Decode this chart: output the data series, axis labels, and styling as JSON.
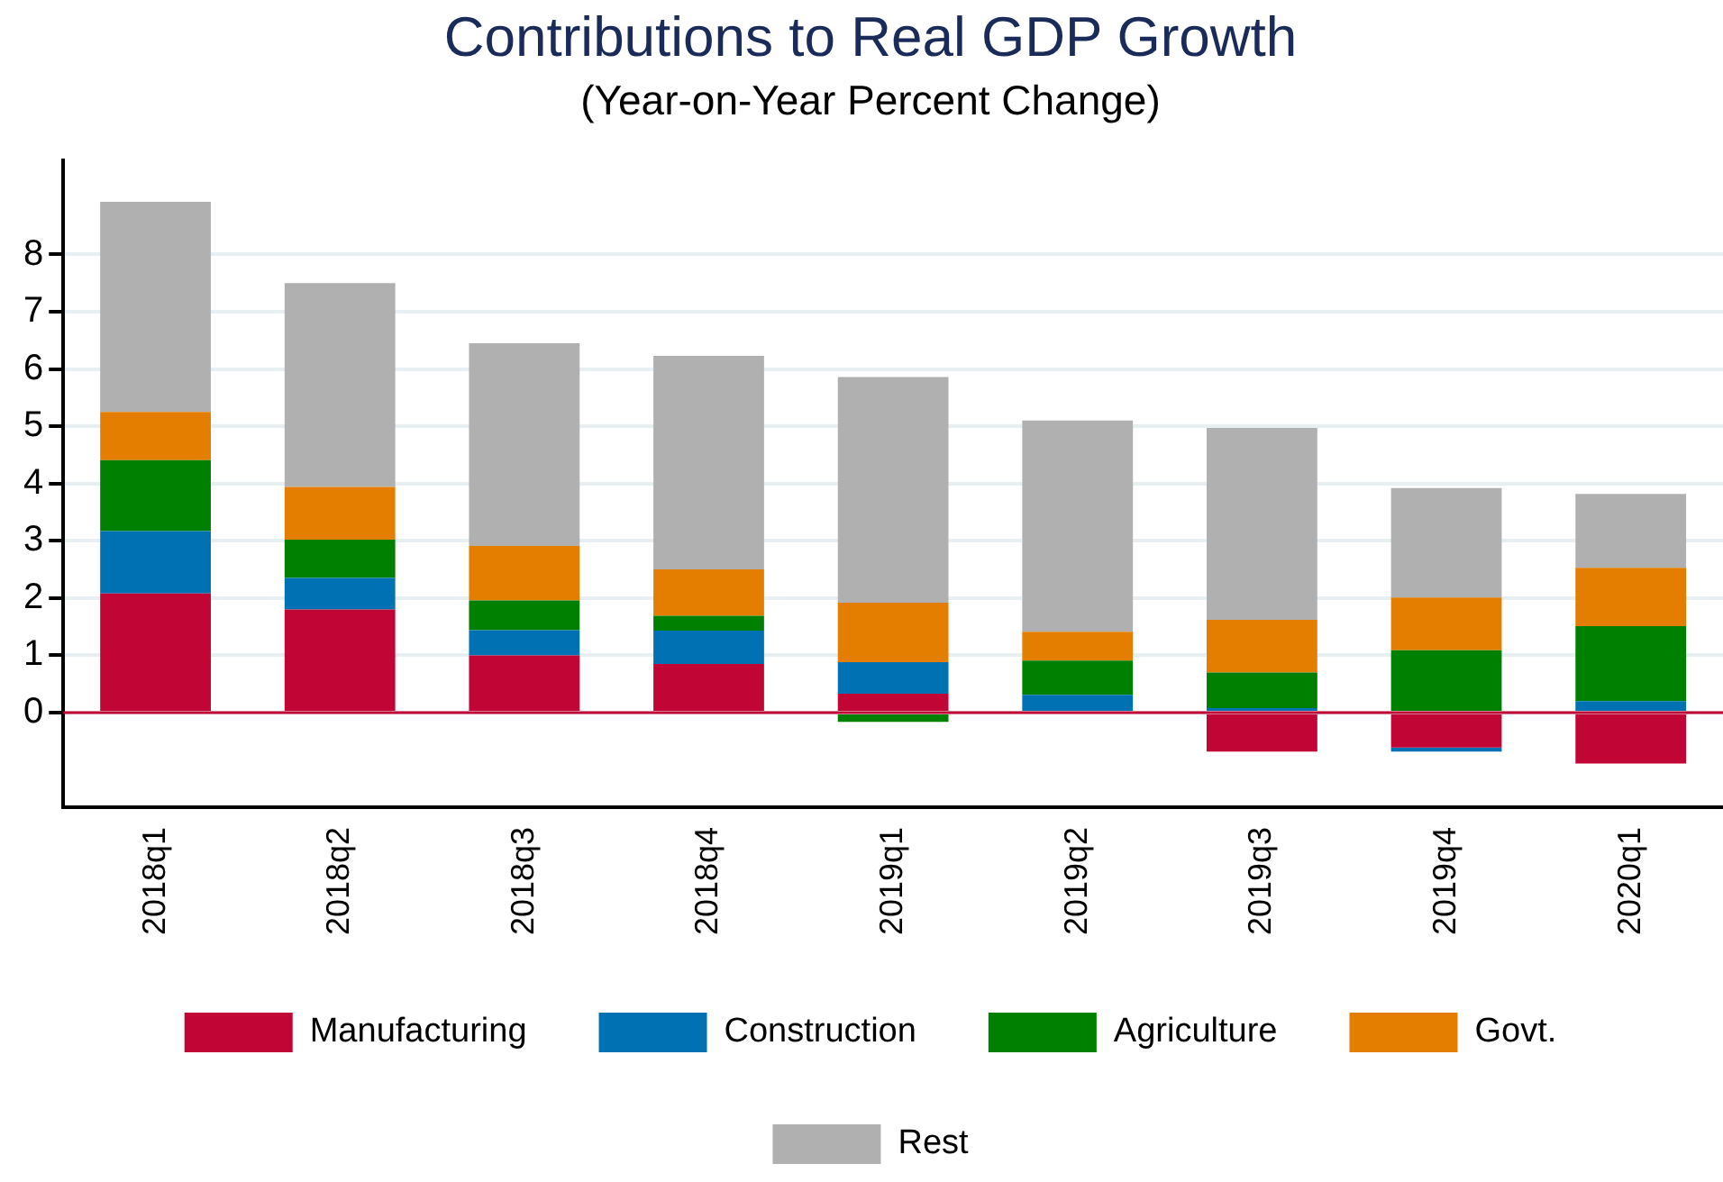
{
  "chart_data": {
    "type": "bar",
    "title": "Contributions to Real GDP Growth",
    "subtitle": "(Year-on-Year Percent Change)",
    "categories": [
      "2018q1",
      "2018q2",
      "2018q3",
      "2018q4",
      "2019q1",
      "2019q2",
      "2019q3",
      "2019q4",
      "2020q1"
    ],
    "stacked": true,
    "series": [
      {
        "name": "Manufacturing",
        "color": "#c10534",
        "values": [
          2.08,
          1.8,
          1.0,
          0.85,
          0.33,
          0,
          -0.68,
          -0.61,
          -0.89
        ]
      },
      {
        "name": "Construction",
        "color": "#0071b3",
        "values": [
          1.09,
          0.55,
          0.44,
          0.58,
          0.55,
          0.31,
          0.08,
          -0.07,
          0.2
        ]
      },
      {
        "name": "Agriculture",
        "color": "#008000",
        "values": [
          1.24,
          0.67,
          0.52,
          0.26,
          -0.16,
          0.6,
          0.62,
          1.09,
          1.31
        ]
      },
      {
        "name": "Govt.",
        "color": "#e37e00",
        "values": [
          0.84,
          0.92,
          0.95,
          0.81,
          1.04,
          0.5,
          0.92,
          0.92,
          1.02
        ]
      },
      {
        "name": "Rest",
        "color": "#b0b0b0",
        "values": [
          3.67,
          3.56,
          3.54,
          3.73,
          3.94,
          3.69,
          3.35,
          1.91,
          1.29
        ]
      }
    ],
    "ylim": [
      -1.65,
      9.65
    ],
    "yticks": [
      0,
      1,
      2,
      3,
      4,
      5,
      6,
      7,
      8
    ],
    "grid": "y",
    "legend": "bottom",
    "ref_lines": [
      {
        "axis": "y",
        "value": 0,
        "color": "#c10534"
      }
    ]
  }
}
